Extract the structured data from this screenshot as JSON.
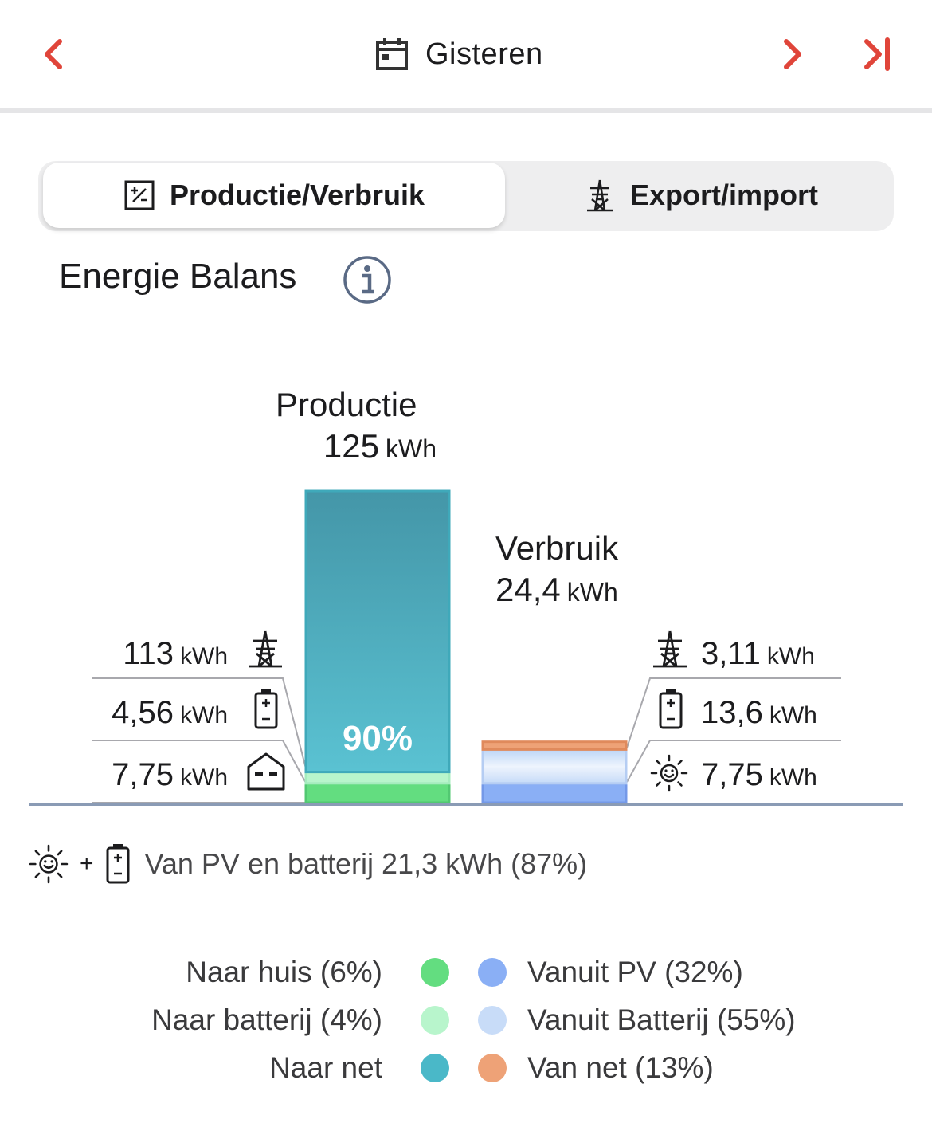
{
  "header": {
    "date_label": "Gisteren",
    "prev_icon": "chevron-left-icon",
    "next_icon": "chevron-right-icon",
    "last_icon": "skip-to-end-icon",
    "accent_color": "#e0453a"
  },
  "tabs": [
    {
      "label": "Productie/Verbruik",
      "icon": "production-consumption-icon",
      "selected": true
    },
    {
      "label": "Export/import",
      "icon": "power-pylon-icon",
      "selected": false
    }
  ],
  "section": {
    "title": "Energie Balans",
    "info_icon": "info-icon"
  },
  "production": {
    "label": "Productie",
    "value": "125",
    "unit": "kWh",
    "percent_label": "90%",
    "rows": [
      {
        "value": "113",
        "unit": "kWh",
        "icon": "power-pylon-icon"
      },
      {
        "value": "4,56",
        "unit": "kWh",
        "icon": "battery-icon"
      },
      {
        "value": "7,75",
        "unit": "kWh",
        "icon": "house-icon"
      }
    ]
  },
  "consumption": {
    "label": "Verbruik",
    "value": "24,4",
    "unit": "kWh",
    "rows": [
      {
        "value": "3,11",
        "unit": "kWh",
        "icon": "power-pylon-icon"
      },
      {
        "value": "13,6",
        "unit": "kWh",
        "icon": "battery-icon"
      },
      {
        "value": "7,75",
        "unit": "kWh",
        "icon": "sun-icon"
      }
    ]
  },
  "summary": {
    "text": "Van PV en batterij 21,3 kWh (87%)",
    "plus": "+",
    "icons": [
      "sun-icon",
      "battery-icon"
    ]
  },
  "legend": {
    "left": [
      {
        "label": "Naar huis (6%)",
        "color": "#63dd80"
      },
      {
        "label": "Naar batterij (4%)",
        "color": "#b8f5cc"
      },
      {
        "label": "Naar net",
        "color": "#4ab8c8"
      }
    ],
    "right": [
      {
        "label": "Vanuit PV (32%)",
        "color": "#8aaff5"
      },
      {
        "label": "Vanuit Batterij (55%)",
        "color": "#c8dcf8"
      },
      {
        "label": "Van net (13%)",
        "color": "#eea277"
      }
    ]
  },
  "chart_data": {
    "type": "bar",
    "categories": [
      "Productie",
      "Verbruik"
    ],
    "series": [
      {
        "name": "Naar net",
        "values": [
          113,
          0
        ],
        "color": "#4ab8c8"
      },
      {
        "name": "Naar batterij",
        "values": [
          4.56,
          0
        ],
        "color": "#b8f5cc"
      },
      {
        "name": "Naar huis",
        "values": [
          7.75,
          0
        ],
        "color": "#63dd80"
      },
      {
        "name": "Vanuit PV",
        "values": [
          0,
          7.75
        ],
        "color": "#8aaff5"
      },
      {
        "name": "Vanuit Batterij",
        "values": [
          0,
          13.6
        ],
        "color": "#c8dcf8"
      },
      {
        "name": "Van net",
        "values": [
          0,
          3.11
        ],
        "color": "#eea277"
      }
    ],
    "totals": [
      125,
      24.4
    ],
    "unit": "kWh",
    "stacked": true,
    "grid": false
  }
}
